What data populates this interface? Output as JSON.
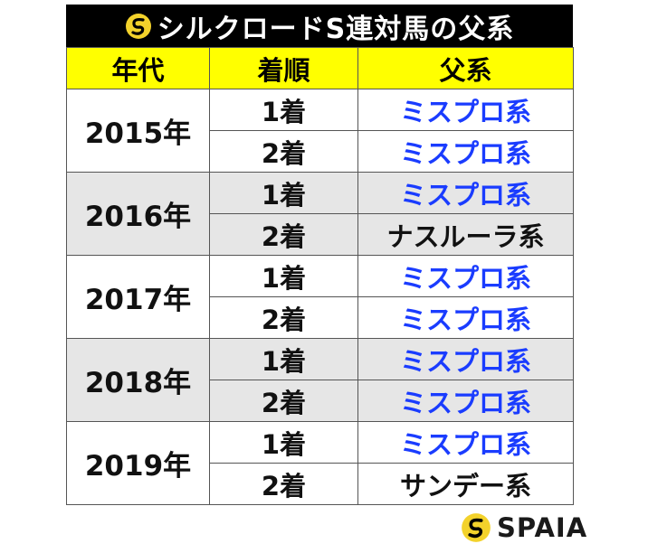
{
  "title": "シルクロードS連対馬の父系",
  "headers": [
    "年代",
    "着順",
    "父系"
  ],
  "accent_colors": {
    "header_bg": "#ffff00",
    "title_bg": "#000000",
    "highlight_text": "#1a3cff",
    "shade_row": "#e6e6e6"
  },
  "rows": [
    {
      "year": "2015年",
      "entries": [
        {
          "rank": "1着",
          "lineage": "ミスプロ系",
          "highlight": true
        },
        {
          "rank": "2着",
          "lineage": "ミスプロ系",
          "highlight": true
        }
      ]
    },
    {
      "year": "2016年",
      "entries": [
        {
          "rank": "1着",
          "lineage": "ミスプロ系",
          "highlight": true
        },
        {
          "rank": "2着",
          "lineage": "ナスルーラ系",
          "highlight": false
        }
      ]
    },
    {
      "year": "2017年",
      "entries": [
        {
          "rank": "1着",
          "lineage": "ミスプロ系",
          "highlight": true
        },
        {
          "rank": "2着",
          "lineage": "ミスプロ系",
          "highlight": true
        }
      ]
    },
    {
      "year": "2018年",
      "entries": [
        {
          "rank": "1着",
          "lineage": "ミスプロ系",
          "highlight": true
        },
        {
          "rank": "2着",
          "lineage": "ミスプロ系",
          "highlight": true
        }
      ]
    },
    {
      "year": "2019年",
      "entries": [
        {
          "rank": "1着",
          "lineage": "ミスプロ系",
          "highlight": true
        },
        {
          "rank": "2着",
          "lineage": "サンデー系",
          "highlight": false
        }
      ]
    }
  ],
  "brand": {
    "name": "SPAIA",
    "logo_icon": "spaia-logo-icon"
  }
}
